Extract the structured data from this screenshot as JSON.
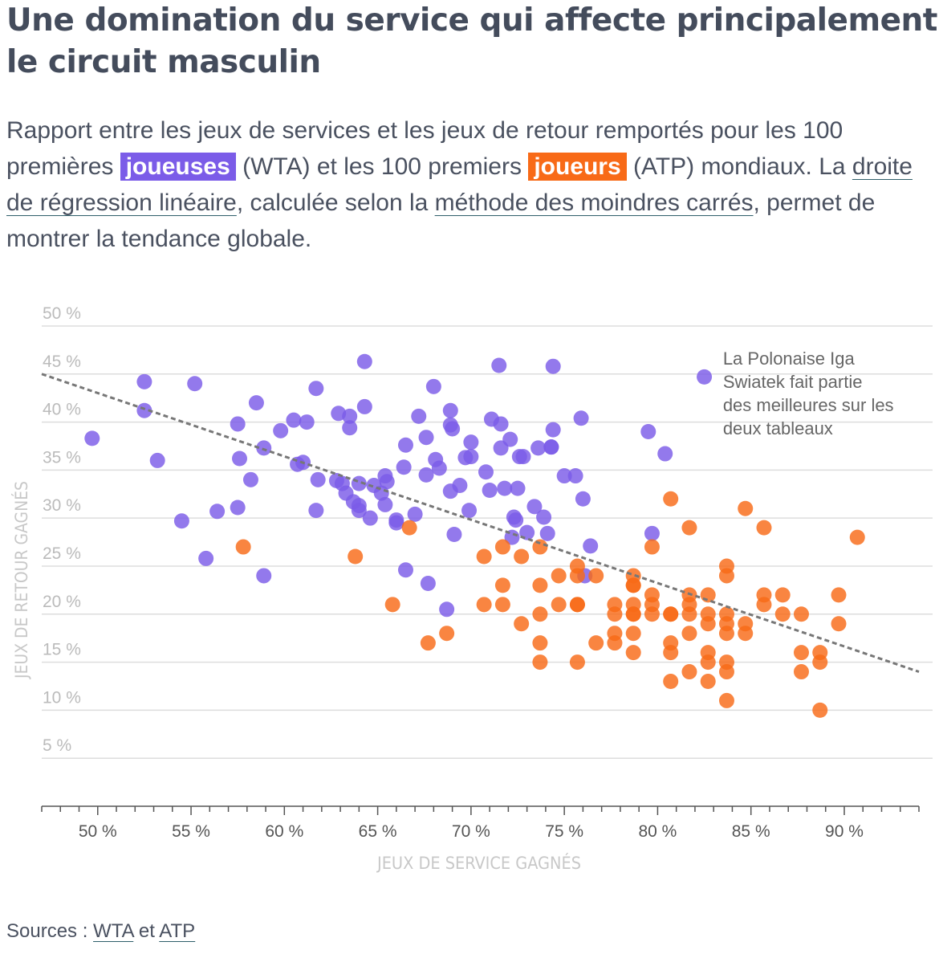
{
  "title": "Une domination du service qui affecte principalement le circuit masculin",
  "subtitle": {
    "part1": "Rapport entre les jeux de services et les jeux de retour remportés pour les 100 premières ",
    "tag_wta": "joueuses",
    "part2": " (WTA) et les 100 premiers ",
    "tag_atp": "joueurs",
    "part3": " (ATP) mondiaux. La ",
    "link_regression": "droite de régression linéaire",
    "part4": ", calculée selon la ",
    "link_method": "méthode des moindres carrés",
    "part5": ", permet de montrer la tendance globale."
  },
  "sources": {
    "label": "Sources : ",
    "link_wta": "WTA",
    "conj": " et ",
    "link_atp": "ATP"
  },
  "colors": {
    "wta": "#7b5ce8",
    "atp": "#f86a17",
    "regression": "#777777",
    "grid": "#dddddd",
    "axis_text": "#bbbbbb",
    "tick_text": "#555555"
  },
  "chart_data": {
    "type": "scatter",
    "xlabel": "JEUX DE SERVICE GAGNÉS",
    "ylabel": "JEUX DE RETOUR GAGNÉS",
    "xlim": [
      47,
      94
    ],
    "ylim": [
      0,
      51
    ],
    "x_ticks": [
      50,
      55,
      60,
      65,
      70,
      75,
      80,
      85,
      90
    ],
    "x_tick_labels": [
      "50 %",
      "55 %",
      "60 %",
      "65 %",
      "70 %",
      "75 %",
      "80 %",
      "85 %",
      "90 %"
    ],
    "y_ticks": [
      5,
      10,
      15,
      20,
      25,
      30,
      35,
      40,
      45,
      50
    ],
    "y_tick_labels": [
      "5 %",
      "10 %",
      "15 %",
      "20 %",
      "25 %",
      "30 %",
      "35 %",
      "40 %",
      "45 %",
      "50 %"
    ],
    "regression": {
      "x1": 47,
      "y1": 45,
      "x2": 94,
      "y2": 14
    },
    "annotation": {
      "lines": [
        "La Polonaise Iga",
        "Swiatek fait partie",
        "des meilleures sur les",
        "deux tableaux"
      ],
      "x": 83.5,
      "y": 46
    },
    "series": [
      {
        "name": "WTA",
        "points": [
          [
            49.7,
            38.3
          ],
          [
            52.5,
            44.2
          ],
          [
            52.5,
            41.2
          ],
          [
            53.2,
            36.0
          ],
          [
            54.5,
            29.7
          ],
          [
            55.2,
            44.0
          ],
          [
            55.8,
            25.8
          ],
          [
            56.4,
            30.7
          ],
          [
            57.5,
            39.8
          ],
          [
            57.6,
            36.2
          ],
          [
            57.5,
            31.1
          ],
          [
            58.2,
            34.0
          ],
          [
            58.5,
            42.0
          ],
          [
            58.9,
            37.3
          ],
          [
            58.9,
            24.0
          ],
          [
            59.8,
            39.1
          ],
          [
            60.5,
            40.2
          ],
          [
            60.7,
            35.6
          ],
          [
            61.0,
            35.8
          ],
          [
            61.2,
            40.0
          ],
          [
            61.7,
            43.5
          ],
          [
            61.8,
            34.0
          ],
          [
            61.7,
            30.8
          ],
          [
            62.9,
            40.9
          ],
          [
            62.8,
            33.9
          ],
          [
            63.1,
            33.6
          ],
          [
            63.3,
            32.6
          ],
          [
            63.5,
            39.4
          ],
          [
            63.5,
            40.6
          ],
          [
            63.7,
            31.7
          ],
          [
            64.0,
            31.3
          ],
          [
            64.0,
            33.6
          ],
          [
            64.0,
            30.8
          ],
          [
            64.3,
            41.6
          ],
          [
            64.3,
            46.3
          ],
          [
            64.6,
            30.0
          ],
          [
            64.8,
            33.4
          ],
          [
            65.2,
            32.6
          ],
          [
            65.4,
            34.4
          ],
          [
            65.5,
            33.8
          ],
          [
            65.4,
            31.4
          ],
          [
            66.0,
            29.8
          ],
          [
            66.0,
            29.5
          ],
          [
            66.4,
            35.3
          ],
          [
            66.5,
            37.6
          ],
          [
            66.5,
            24.6
          ],
          [
            67.0,
            30.4
          ],
          [
            67.2,
            40.6
          ],
          [
            67.6,
            38.4
          ],
          [
            67.6,
            34.5
          ],
          [
            67.7,
            23.2
          ],
          [
            68.0,
            43.7
          ],
          [
            68.1,
            36.1
          ],
          [
            68.3,
            35.2
          ],
          [
            68.7,
            20.5
          ],
          [
            68.9,
            41.2
          ],
          [
            68.9,
            39.7
          ],
          [
            69.0,
            39.3
          ],
          [
            68.9,
            32.8
          ],
          [
            69.1,
            28.3
          ],
          [
            69.4,
            33.4
          ],
          [
            69.7,
            36.3
          ],
          [
            69.9,
            30.8
          ],
          [
            70.0,
            36.4
          ],
          [
            70.0,
            37.9
          ],
          [
            70.8,
            34.8
          ],
          [
            71.0,
            32.9
          ],
          [
            71.1,
            40.3
          ],
          [
            71.6,
            39.8
          ],
          [
            71.6,
            37.3
          ],
          [
            71.5,
            45.9
          ],
          [
            71.8,
            33.1
          ],
          [
            72.1,
            38.2
          ],
          [
            72.2,
            28.0
          ],
          [
            72.3,
            30.1
          ],
          [
            72.4,
            29.8
          ],
          [
            72.5,
            33.1
          ],
          [
            72.6,
            36.4
          ],
          [
            72.8,
            36.4
          ],
          [
            73.0,
            28.5
          ],
          [
            73.4,
            31.2
          ],
          [
            73.6,
            37.3
          ],
          [
            73.9,
            30.1
          ],
          [
            74.1,
            28.4
          ],
          [
            74.3,
            37.4
          ],
          [
            74.3,
            37.4
          ],
          [
            74.4,
            39.2
          ],
          [
            74.4,
            45.8
          ],
          [
            75.0,
            34.4
          ],
          [
            75.6,
            34.4
          ],
          [
            75.9,
            40.4
          ],
          [
            76.0,
            32.0
          ],
          [
            76.1,
            24.0
          ],
          [
            76.4,
            27.1
          ],
          [
            79.5,
            39.0
          ],
          [
            79.7,
            28.4
          ],
          [
            80.4,
            36.7
          ],
          [
            82.5,
            44.7
          ]
        ]
      },
      {
        "name": "ATP",
        "points": [
          [
            57.8,
            27.0
          ],
          [
            63.8,
            26.0
          ],
          [
            65.8,
            21.0
          ],
          [
            66.7,
            29.0
          ],
          [
            67.7,
            17.0
          ],
          [
            68.7,
            18.0
          ],
          [
            70.7,
            26.0
          ],
          [
            70.7,
            21.0
          ],
          [
            71.7,
            27.0
          ],
          [
            71.7,
            23.0
          ],
          [
            71.7,
            21.0
          ],
          [
            72.7,
            19.0
          ],
          [
            72.7,
            26.0
          ],
          [
            73.7,
            27.0
          ],
          [
            73.7,
            23.0
          ],
          [
            73.7,
            20.0
          ],
          [
            73.7,
            17.0
          ],
          [
            73.7,
            15.0
          ],
          [
            74.7,
            24.0
          ],
          [
            74.7,
            21.0
          ],
          [
            75.7,
            25.0
          ],
          [
            75.7,
            24.0
          ],
          [
            75.7,
            21.0
          ],
          [
            75.7,
            21.0
          ],
          [
            75.7,
            15.0
          ],
          [
            76.7,
            24.0
          ],
          [
            76.7,
            17.0
          ],
          [
            77.7,
            21.0
          ],
          [
            77.7,
            20.0
          ],
          [
            77.7,
            18.0
          ],
          [
            77.7,
            17.0
          ],
          [
            78.7,
            24.0
          ],
          [
            78.7,
            23.0
          ],
          [
            78.7,
            23.0
          ],
          [
            78.7,
            21.0
          ],
          [
            78.7,
            20.0
          ],
          [
            78.7,
            20.0
          ],
          [
            78.7,
            18.0
          ],
          [
            78.7,
            16.0
          ],
          [
            79.7,
            27.0
          ],
          [
            79.7,
            22.0
          ],
          [
            79.7,
            21.0
          ],
          [
            79.7,
            20.0
          ],
          [
            80.7,
            32.0
          ],
          [
            80.7,
            20.0
          ],
          [
            80.7,
            20.0
          ],
          [
            80.7,
            17.0
          ],
          [
            80.7,
            16.0
          ],
          [
            80.7,
            13.0
          ],
          [
            81.7,
            29.0
          ],
          [
            81.7,
            22.0
          ],
          [
            81.7,
            21.0
          ],
          [
            81.7,
            20.0
          ],
          [
            81.7,
            18.0
          ],
          [
            81.7,
            14.0
          ],
          [
            82.7,
            22.0
          ],
          [
            82.7,
            20.0
          ],
          [
            82.7,
            19.0
          ],
          [
            82.7,
            16.0
          ],
          [
            82.7,
            15.0
          ],
          [
            82.7,
            13.0
          ],
          [
            83.7,
            25.0
          ],
          [
            83.7,
            24.0
          ],
          [
            83.7,
            20.0
          ],
          [
            83.7,
            19.0
          ],
          [
            83.7,
            18.0
          ],
          [
            83.7,
            15.0
          ],
          [
            83.7,
            14.0
          ],
          [
            83.7,
            11.0
          ],
          [
            84.7,
            31.0
          ],
          [
            84.7,
            19.0
          ],
          [
            84.7,
            18.0
          ],
          [
            85.7,
            29.0
          ],
          [
            85.7,
            22.0
          ],
          [
            85.7,
            21.0
          ],
          [
            86.7,
            22.0
          ],
          [
            86.7,
            20.0
          ],
          [
            87.7,
            20.0
          ],
          [
            87.7,
            16.0
          ],
          [
            87.7,
            14.0
          ],
          [
            88.7,
            16.0
          ],
          [
            88.7,
            15.0
          ],
          [
            88.7,
            10.0
          ],
          [
            89.7,
            22.0
          ],
          [
            89.7,
            19.0
          ],
          [
            90.7,
            28.0
          ]
        ]
      }
    ]
  }
}
